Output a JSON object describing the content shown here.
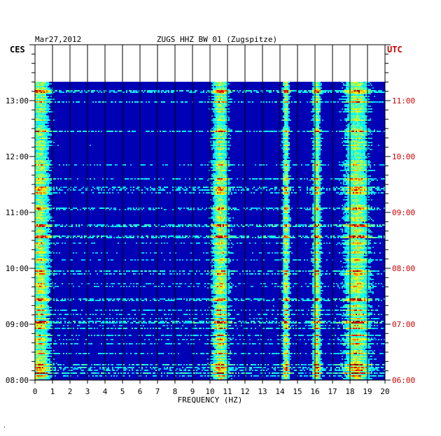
{
  "header": {
    "date": "Mar27,2012",
    "station": "ZUGS HHZ BW 01 (Zugspitze)",
    "left_zone": "CES",
    "right_zone": "UTC"
  },
  "footer": {
    "mark": "·"
  },
  "colors": {
    "background": "#ffffff",
    "plot_base": "#0000b4",
    "utc_text": "#cc0000",
    "grid": "#000000"
  },
  "chart_data": {
    "type": "heatmap",
    "title": "ZUGS HHZ BW 01 (Zugspitze)",
    "xlabel": "FREQUENCY (HZ)",
    "ylabel": "",
    "xlim": [
      0,
      20
    ],
    "x_ticks": [
      "0",
      "1",
      "2",
      "3",
      "4",
      "5",
      "6",
      "7",
      "8",
      "9",
      "10",
      "11",
      "12",
      "13",
      "14",
      "15",
      "16",
      "17",
      "18",
      "19",
      "20"
    ],
    "y_left_ticks": [
      "13:00",
      "12:00",
      "11:00",
      "10:00",
      "09:00",
      "08:00"
    ],
    "y_right_ticks": [
      "11:00",
      "10:00",
      "09:00",
      "08:00",
      "07:00",
      "06:00"
    ],
    "y_left_range": [
      "08:00",
      "13:27"
    ],
    "colormap": "jet",
    "grid": true,
    "dominant_bands_hz": [
      {
        "center": 10.6,
        "width": 0.6
      },
      {
        "center": 14.35,
        "width": 0.25
      },
      {
        "center": 18.4,
        "width": 0.9
      },
      {
        "center": 16.1,
        "width": 0.3
      },
      {
        "center": 0.3,
        "width": 0.7
      }
    ]
  }
}
